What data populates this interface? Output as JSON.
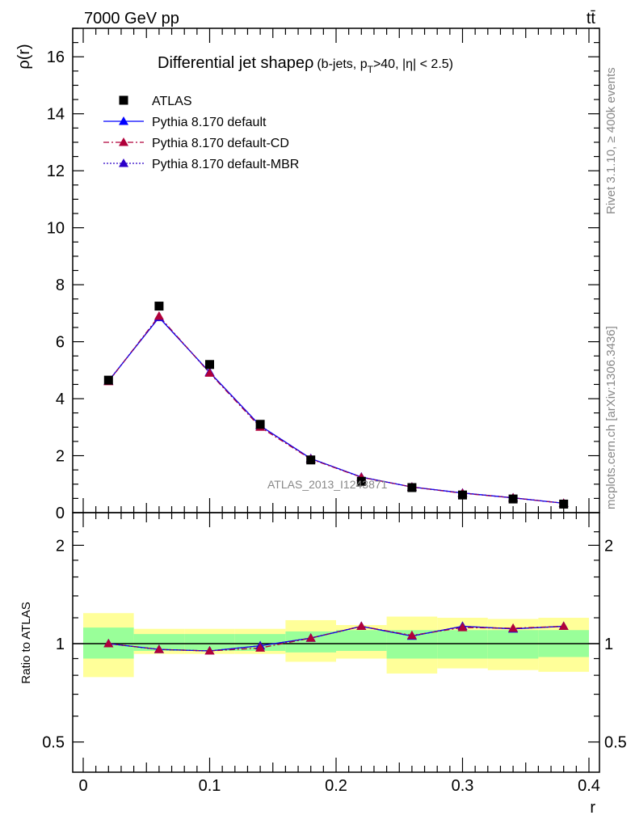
{
  "header": {
    "energy_label": "7000 GeV pp",
    "process_label": "tt̄"
  },
  "side_text": {
    "rivet": "Rivet 3.1.10, ≥ 400k events",
    "mcplots": "mcplots.cern.ch [arXiv:1306.3436]"
  },
  "colors": {
    "atlas": "#000000",
    "pythia_default": "#0000ff",
    "pythia_cd": "#b0003a",
    "pythia_mbr": "#2c00c8",
    "band_inner": "#99ff99",
    "band_outer": "#ffff99"
  },
  "chart_data": [
    {
      "type": "scatter",
      "title": "Differential jet shapeρ",
      "subtitle_parts": {
        "open": "(b-jets, p",
        "sub": "T",
        "close": ">40, |η| < 2.5)"
      },
      "ylabel": "ρ(r)",
      "xlabel": "",
      "xlim": [
        -0.01,
        0.4
      ],
      "ylim": [
        0,
        17
      ],
      "yticks": [
        0,
        2,
        4,
        6,
        8,
        10,
        12,
        14,
        16
      ],
      "watermark": "ATLAS_2013_I1243871",
      "legend_position": "top-left",
      "x": [
        0.02,
        0.06,
        0.1,
        0.14,
        0.18,
        0.22,
        0.26,
        0.3,
        0.34,
        0.38
      ],
      "series": [
        {
          "name": "ATLAS",
          "marker": "square",
          "values": [
            4.65,
            7.25,
            5.2,
            3.1,
            1.85,
            1.1,
            0.88,
            0.62,
            0.48,
            0.3
          ]
        },
        {
          "name": "Pythia 8.170 default",
          "marker": "triangle",
          "line": "solid",
          "values": [
            4.62,
            6.85,
            4.93,
            3.05,
            1.9,
            1.25,
            0.9,
            0.69,
            0.52,
            0.33
          ]
        },
        {
          "name": "Pythia 8.170 default-CD",
          "marker": "triangle",
          "line": "dashdot",
          "values": [
            4.6,
            6.9,
            4.9,
            3.0,
            1.88,
            1.24,
            0.9,
            0.68,
            0.52,
            0.33
          ]
        },
        {
          "name": "Pythia 8.170 default-MBR",
          "marker": "triangle",
          "line": "dotted",
          "values": [
            4.62,
            6.86,
            4.92,
            3.05,
            1.9,
            1.25,
            0.9,
            0.69,
            0.52,
            0.33
          ]
        }
      ]
    },
    {
      "type": "scatter",
      "ylabel": "Ratio to ATLAS",
      "xlabel": "r",
      "xlim": [
        -0.01,
        0.4
      ],
      "ylim": [
        0.4,
        2.4
      ],
      "yscale": "log",
      "yticks": [
        0.5,
        1,
        2
      ],
      "xticks": [
        0,
        0.1,
        0.2,
        0.3,
        0.4
      ],
      "bin_edges": [
        0,
        0.04,
        0.08,
        0.12,
        0.16,
        0.2,
        0.24,
        0.28,
        0.32,
        0.36,
        0.4
      ],
      "band_inner": {
        "low": [
          0.9,
          0.95,
          0.95,
          0.95,
          0.94,
          0.95,
          0.9,
          0.9,
          0.9,
          0.91
        ],
        "high": [
          1.12,
          1.07,
          1.07,
          1.07,
          1.09,
          1.1,
          1.1,
          1.1,
          1.1,
          1.1
        ]
      },
      "band_outer": {
        "low": [
          0.79,
          0.93,
          0.93,
          0.93,
          0.88,
          0.9,
          0.81,
          0.84,
          0.83,
          0.82
        ],
        "high": [
          1.24,
          1.11,
          1.11,
          1.11,
          1.18,
          1.14,
          1.21,
          1.2,
          1.19,
          1.2
        ]
      },
      "x": [
        0.02,
        0.06,
        0.1,
        0.14,
        0.18,
        0.22,
        0.26,
        0.3,
        0.34,
        0.38
      ],
      "series": [
        {
          "name": "Pythia 8.170 default",
          "marker": "triangle",
          "line": "solid",
          "values": [
            1.0,
            0.96,
            0.95,
            0.985,
            1.04,
            1.13,
            1.055,
            1.13,
            1.11,
            1.13
          ]
        },
        {
          "name": "Pythia 8.170 default-CD",
          "marker": "triangle",
          "line": "dashdot",
          "values": [
            1.0,
            0.96,
            0.95,
            0.97,
            1.04,
            1.13,
            1.06,
            1.12,
            1.115,
            1.13
          ]
        },
        {
          "name": "Pythia 8.170 default-MBR",
          "marker": "triangle",
          "line": "dotted",
          "values": [
            1.0,
            0.96,
            0.95,
            0.985,
            1.04,
            1.13,
            1.055,
            1.13,
            1.11,
            1.13
          ]
        }
      ]
    }
  ]
}
